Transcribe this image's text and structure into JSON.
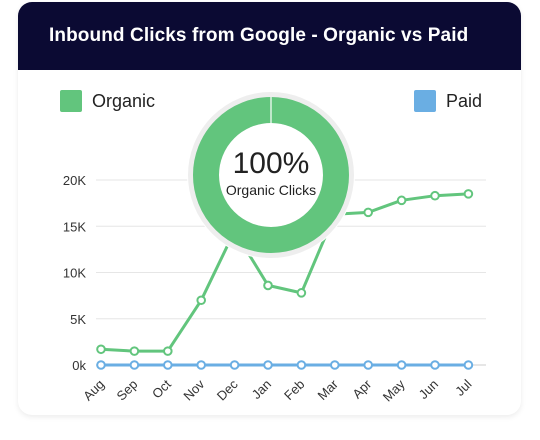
{
  "header": {
    "title": "Inbound Clicks from Google - Organic vs Paid"
  },
  "legend": {
    "organic": {
      "label": "Organic",
      "color": "#62c57d"
    },
    "paid": {
      "label": "Paid",
      "color": "#6aaee3"
    }
  },
  "donut": {
    "value_label": "100%",
    "caption": "Organic Clicks",
    "organic_share": 1.0,
    "color": "#62c57d",
    "ring_bg": "#eeeeee"
  },
  "chart_data": {
    "type": "line",
    "categories": [
      "Aug",
      "Sep",
      "Oct",
      "Nov",
      "Dec",
      "Jan",
      "Feb",
      "Mar",
      "Apr",
      "May",
      "Jun",
      "Jul"
    ],
    "series": [
      {
        "name": "Organic",
        "color": "#62c57d",
        "values": [
          1700,
          1500,
          1500,
          7000,
          14500,
          8600,
          7800,
          16300,
          16500,
          17800,
          18300,
          18500
        ]
      },
      {
        "name": "Paid",
        "color": "#6aaee3",
        "values": [
          0,
          0,
          0,
          0,
          0,
          0,
          0,
          0,
          0,
          0,
          0,
          0
        ]
      }
    ],
    "y_ticks": [
      {
        "value": 0,
        "label": "0k"
      },
      {
        "value": 5000,
        "label": "5K"
      },
      {
        "value": 10000,
        "label": "10K"
      },
      {
        "value": 15000,
        "label": "15K"
      },
      {
        "value": 20000,
        "label": "20K"
      }
    ],
    "ylim": [
      0,
      20000
    ],
    "grid": true,
    "legend_position": "top"
  }
}
